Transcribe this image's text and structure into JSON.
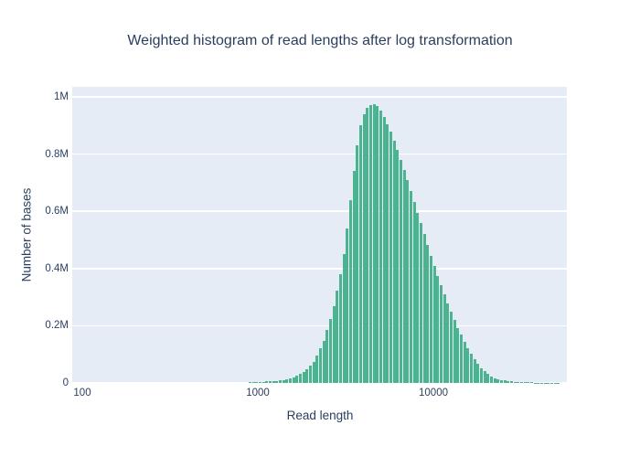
{
  "chart_data": {
    "type": "bar",
    "subtype": "weighted-histogram",
    "title": "Weighted histogram of read lengths after log transformation",
    "xlabel": "Read length",
    "ylabel": "Number of bases",
    "x_scale": "log10",
    "x_range_log10": [
      1.9427,
      4.7604
    ],
    "y_range_bases": [
      0,
      1035000
    ],
    "grid": "horizontal",
    "legend": "none",
    "x_ticks": [
      {
        "label": "100",
        "value": 100
      },
      {
        "label": "1000",
        "value": 1000
      },
      {
        "label": "10000",
        "value": 10000
      }
    ],
    "y_ticks": [
      {
        "label": "0",
        "value": 0
      },
      {
        "label": "0.2M",
        "value": 0.2
      },
      {
        "label": "0.4M",
        "value": 0.4
      },
      {
        "label": "0.6M",
        "value": 0.6
      },
      {
        "label": "0.8M",
        "value": 0.8
      },
      {
        "label": "1M",
        "value": 1.0
      }
    ],
    "bins": {
      "log10_center_start": 2.9553,
      "log10_step": 0.019097,
      "count": 93
    },
    "values_million_bases": [
      0.002,
      0.0025,
      0.003,
      0.0035,
      0.004,
      0.005,
      0.0055,
      0.0065,
      0.0075,
      0.009,
      0.011,
      0.013,
      0.016,
      0.02,
      0.025,
      0.031,
      0.038,
      0.048,
      0.06,
      0.074,
      0.095,
      0.12,
      0.148,
      0.185,
      0.225,
      0.268,
      0.322,
      0.38,
      0.452,
      0.54,
      0.64,
      0.74,
      0.83,
      0.9,
      0.94,
      0.96,
      0.97,
      0.973,
      0.968,
      0.952,
      0.93,
      0.905,
      0.878,
      0.848,
      0.815,
      0.78,
      0.745,
      0.708,
      0.67,
      0.632,
      0.595,
      0.558,
      0.52,
      0.483,
      0.445,
      0.41,
      0.375,
      0.342,
      0.31,
      0.278,
      0.248,
      0.22,
      0.193,
      0.168,
      0.144,
      0.122,
      0.101,
      0.083,
      0.066,
      0.052,
      0.04,
      0.031,
      0.023,
      0.017,
      0.013,
      0.01,
      0.008,
      0.006,
      0.005,
      0.004,
      0.0035,
      0.003,
      0.0025,
      0.002,
      0.002,
      0.0015,
      0.0015,
      0.001,
      0.001,
      0.001,
      0.001,
      0.001,
      0.001
    ],
    "colors": {
      "bar": "#4CB391",
      "plot_background": "#E5ECF6",
      "grid": "#FFFFFF",
      "text": "#2A3F5F",
      "page_background": "#FFFFFF"
    }
  }
}
